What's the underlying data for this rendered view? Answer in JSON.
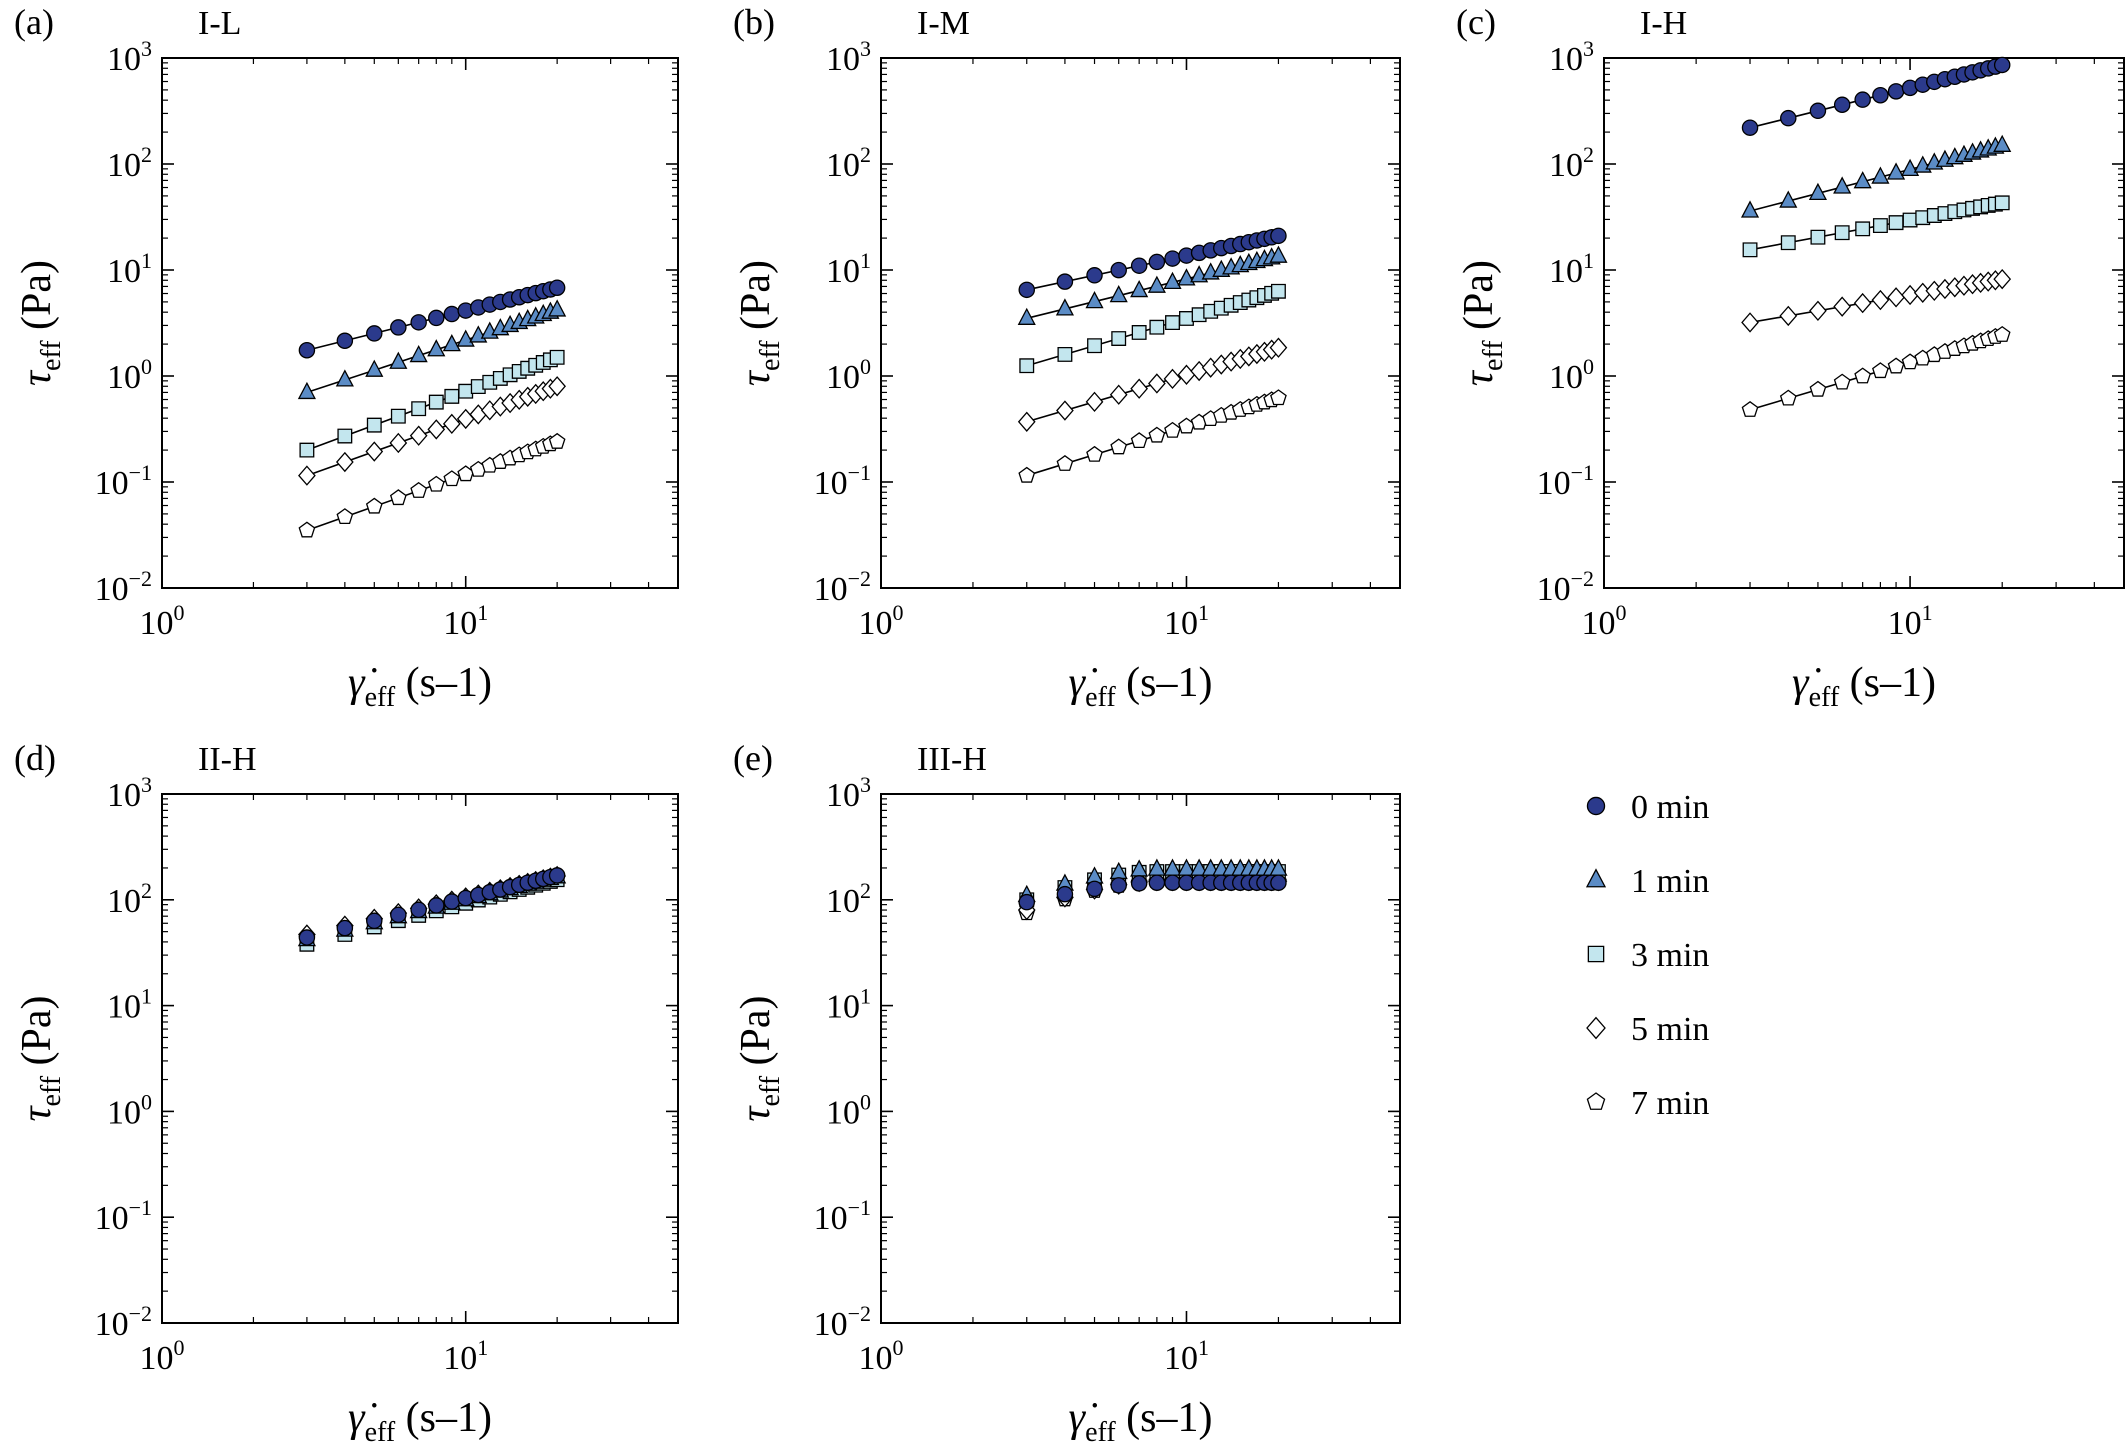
{
  "figure": {
    "legend": [
      {
        "id": "t0",
        "label": "0 min",
        "marker": "circle",
        "color": "#2b3a8c"
      },
      {
        "id": "t1",
        "label": "1 min",
        "marker": "triangle",
        "color": "#5b8cc6"
      },
      {
        "id": "t3",
        "label": "3 min",
        "marker": "square",
        "color": "#c3e6ee"
      },
      {
        "id": "t5",
        "label": "5 min",
        "marker": "diamond",
        "color": "#ffffff"
      },
      {
        "id": "t7",
        "label": "7 min",
        "marker": "pentagon",
        "color": "#ffffff"
      }
    ]
  },
  "chart_data": [
    {
      "type": "scatter",
      "panel_label": "(a)",
      "title": "I-L",
      "xlabel": "γ̇eff (s–1)",
      "ylabel": "τeff (Pa)",
      "xscale": "log",
      "yscale": "log",
      "xlim": [
        1,
        50
      ],
      "ylim": [
        0.01,
        1000
      ],
      "xticks": [
        1,
        10
      ],
      "yticks": [
        0.01,
        0.1,
        1,
        10,
        100,
        1000
      ],
      "fit_lines": true,
      "series": [
        {
          "name": "0 min",
          "x_range": [
            3,
            20
          ],
          "y_range": [
            1.75,
            6.8
          ]
        },
        {
          "name": "1 min",
          "x_range": [
            3,
            20
          ],
          "y_range": [
            0.7,
            4.2
          ]
        },
        {
          "name": "3 min",
          "x_range": [
            3,
            20
          ],
          "y_range": [
            0.2,
            1.5
          ]
        },
        {
          "name": "5 min",
          "x_range": [
            3,
            20
          ],
          "y_range": [
            0.115,
            0.8
          ]
        },
        {
          "name": "7 min",
          "x_range": [
            3,
            20
          ],
          "y_range": [
            0.035,
            0.24
          ]
        }
      ]
    },
    {
      "type": "scatter",
      "panel_label": "(b)",
      "title": "I-M",
      "xlabel": "γ̇eff (s–1)",
      "ylabel": "τeff (Pa)",
      "xscale": "log",
      "yscale": "log",
      "xlim": [
        1,
        50
      ],
      "ylim": [
        0.01,
        1000
      ],
      "xticks": [
        1,
        10
      ],
      "yticks": [
        0.01,
        0.1,
        1,
        10,
        100,
        1000
      ],
      "fit_lines": true,
      "series": [
        {
          "name": "0 min",
          "x_range": [
            3,
            20
          ],
          "y_range": [
            6.5,
            21
          ]
        },
        {
          "name": "1 min",
          "x_range": [
            3,
            20
          ],
          "y_range": [
            3.5,
            13.5
          ]
        },
        {
          "name": "3 min",
          "x_range": [
            3,
            20
          ],
          "y_range": [
            1.25,
            6.3
          ]
        },
        {
          "name": "5 min",
          "x_range": [
            3,
            20
          ],
          "y_range": [
            0.37,
            1.85
          ]
        },
        {
          "name": "7 min",
          "x_range": [
            3,
            20
          ],
          "y_range": [
            0.115,
            0.62
          ]
        }
      ]
    },
    {
      "type": "scatter",
      "panel_label": "(c)",
      "title": "I-H",
      "xlabel": "γ̇eff (s–1)",
      "ylabel": "τeff (Pa)",
      "xscale": "log",
      "yscale": "log",
      "xlim": [
        1,
        50
      ],
      "ylim": [
        0.01,
        1000
      ],
      "xticks": [
        1,
        10
      ],
      "yticks": [
        0.01,
        0.1,
        1,
        10,
        100,
        1000
      ],
      "fit_lines": true,
      "series": [
        {
          "name": "0 min",
          "x_range": [
            3,
            20
          ],
          "y_range": [
            220,
            860
          ]
        },
        {
          "name": "1 min",
          "x_range": [
            3,
            20
          ],
          "y_range": [
            36,
            150
          ]
        },
        {
          "name": "3 min",
          "x_range": [
            3,
            20
          ],
          "y_range": [
            15.5,
            43
          ]
        },
        {
          "name": "5 min",
          "x_range": [
            3,
            20
          ],
          "y_range": [
            3.2,
            8.2
          ]
        },
        {
          "name": "7 min",
          "x_range": [
            3,
            20
          ],
          "y_range": [
            0.48,
            2.45
          ]
        }
      ]
    },
    {
      "type": "scatter",
      "panel_label": "(d)",
      "title": "II-H",
      "xlabel": "γ̇eff (s–1)",
      "ylabel": "τeff (Pa)",
      "xscale": "log",
      "yscale": "log",
      "xlim": [
        1,
        50
      ],
      "ylim": [
        0.01,
        1000
      ],
      "xticks": [
        1,
        10
      ],
      "yticks": [
        0.01,
        0.1,
        1,
        10,
        100,
        1000
      ],
      "fit_lines": false,
      "series": [
        {
          "name": "0 min",
          "x_range": [
            3,
            20
          ],
          "y_range": [
            44,
            170
          ]
        },
        {
          "name": "1 min",
          "x_range": [
            3,
            20
          ],
          "y_range": [
            42,
            165
          ]
        },
        {
          "name": "3 min",
          "x_range": [
            3,
            20
          ],
          "y_range": [
            38,
            155
          ]
        },
        {
          "name": "5 min",
          "x_range": [
            3,
            20
          ],
          "y_range": [
            47,
            168
          ]
        },
        {
          "name": "7 min",
          "x_range": [
            3,
            20
          ],
          "y_range": [
            43,
            160
          ]
        }
      ]
    },
    {
      "type": "scatter",
      "panel_label": "(e)",
      "title": "III-H",
      "xlabel": "γ̇eff (s–1)",
      "ylabel": "τeff (Pa)",
      "xscale": "log",
      "yscale": "log",
      "xlim": [
        1,
        50
      ],
      "ylim": [
        0.01,
        1000
      ],
      "xticks": [
        1,
        10
      ],
      "yticks": [
        0.01,
        0.1,
        1,
        10,
        100,
        1000
      ],
      "fit_lines": false,
      "series": [
        {
          "name": "0 min",
          "x_range": [
            3,
            20
          ],
          "y_range": [
            95,
            145
          ],
          "plateau": true
        },
        {
          "name": "1 min",
          "x_range": [
            3,
            20
          ],
          "y_range": [
            110,
            195
          ],
          "plateau": true
        },
        {
          "name": "3 min",
          "x_range": [
            3,
            20
          ],
          "y_range": [
            100,
            185
          ],
          "plateau": true
        },
        {
          "name": "5 min",
          "x_range": [
            3,
            20
          ],
          "y_range": [
            80,
            150
          ],
          "plateau": true
        },
        {
          "name": "7 min",
          "x_range": [
            3,
            20
          ],
          "y_range": [
            75,
            148
          ],
          "plateau": true
        }
      ]
    }
  ]
}
